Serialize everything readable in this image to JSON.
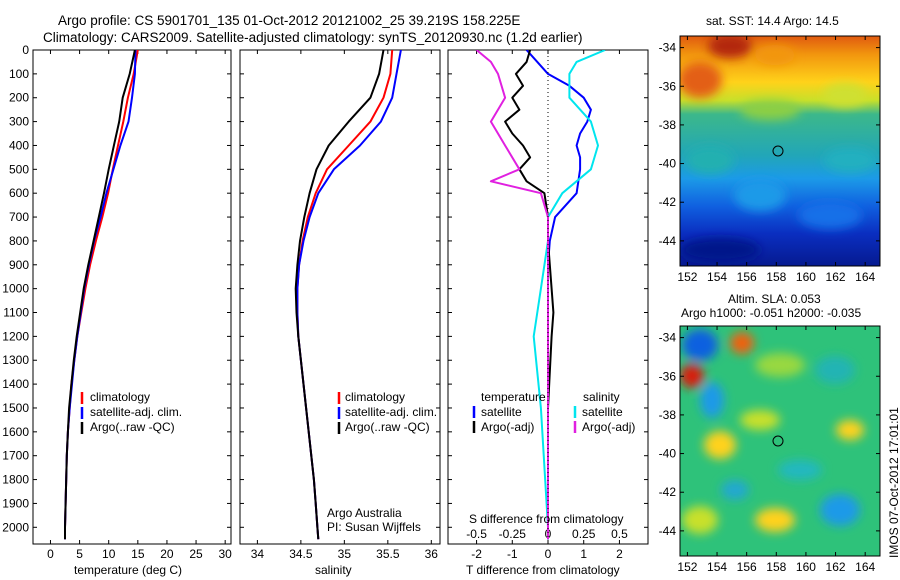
{
  "title": {
    "line1": "Argo profile: CS 5901701_135 01-Oct-2012 20121002_25 39.219S 158.225E",
    "line2": "Climatology: CARS2009. Satellite-adjusted climatology: synTS_20120930.nc (1.2d earlier)"
  },
  "colors": {
    "climatology": "#ff0000",
    "satellite": "#0000ff",
    "argo": "#000000",
    "salinity_satellite": "#00e5ee",
    "salinity_argo": "#e020e0"
  },
  "depth_ticks": [
    "0",
    "100",
    "200",
    "300",
    "400",
    "500",
    "600",
    "700",
    "800",
    "900",
    "1000",
    "1100",
    "1200",
    "1300",
    "1400",
    "1500",
    "1600",
    "1700",
    "1800",
    "1900",
    "2000"
  ],
  "chart_data": [
    {
      "type": "line",
      "panel": "temperature",
      "xlabel": "temperature (deg C)",
      "xticks": [
        "0",
        "5",
        "10",
        "15",
        "20",
        "25",
        "30"
      ],
      "xlim": [
        -3,
        31
      ],
      "ylim": [
        2070,
        0
      ],
      "legend": [
        "climatology",
        "satellite-adj. clim.",
        "Argo(..raw -QC)"
      ],
      "series": [
        {
          "name": "climatology",
          "y": [
            0,
            100,
            200,
            300,
            400,
            500,
            600,
            700,
            800,
            900,
            1000,
            1100,
            1200,
            1300,
            1400,
            1500,
            1600,
            1700,
            1800,
            1900,
            2000,
            2050
          ],
          "values": [
            15.0,
            14.3,
            13.3,
            12.5,
            11.6,
            10.7,
            9.9,
            8.9,
            7.8,
            6.8,
            6.0,
            5.3,
            4.6,
            4.1,
            3.6,
            3.3,
            3.0,
            2.8,
            2.7,
            2.6,
            2.5,
            2.5
          ]
        },
        {
          "name": "satellite-adj. clim.",
          "y": [
            0,
            100,
            200,
            300,
            400,
            500,
            600,
            700,
            800,
            900,
            1000,
            1100,
            1200,
            1300,
            1400,
            1500,
            1600,
            1700,
            1800,
            1900,
            2000,
            2050
          ],
          "values": [
            14.6,
            14.5,
            14.0,
            13.4,
            12.0,
            10.8,
            9.6,
            8.6,
            7.5,
            6.6,
            5.8,
            5.2,
            4.6,
            4.1,
            3.7,
            3.3,
            3.0,
            2.8,
            2.7,
            2.6,
            2.5,
            2.5
          ]
        },
        {
          "name": "Argo(..raw -QC)",
          "y": [
            0,
            100,
            200,
            300,
            400,
            500,
            600,
            700,
            800,
            900,
            1000,
            1100,
            1200,
            1300,
            1400,
            1500,
            1600,
            1700,
            1800,
            1900,
            2000,
            2050
          ],
          "values": [
            14.5,
            13.6,
            12.4,
            11.8,
            10.9,
            10.0,
            9.2,
            8.3,
            7.4,
            6.5,
            5.7,
            5.1,
            4.5,
            4.0,
            3.6,
            3.2,
            3.0,
            2.8,
            2.7,
            2.6,
            2.5,
            2.5
          ]
        }
      ]
    },
    {
      "type": "line",
      "panel": "salinity",
      "xlabel": "salinity",
      "xticks": [
        "34",
        "34.5",
        "35",
        "35.5",
        "36"
      ],
      "xlim": [
        33.8,
        36.1
      ],
      "ylim": [
        2070,
        0
      ],
      "legend": [
        "climatology",
        "satellite-adj. clim.",
        "Argo(..raw -QC)"
      ],
      "annotation": [
        "Argo Australia",
        "PI: Susan Wijffels"
      ],
      "series": [
        {
          "name": "climatology",
          "y": [
            0,
            100,
            200,
            300,
            400,
            500,
            600,
            700,
            800,
            900,
            1000,
            1100,
            1200,
            1300,
            1400,
            1500,
            1600,
            1700,
            1800,
            1900,
            2000,
            2050
          ],
          "values": [
            35.55,
            35.53,
            35.45,
            35.3,
            35.05,
            34.8,
            34.67,
            34.58,
            34.52,
            34.48,
            34.46,
            34.46,
            34.47,
            34.5,
            34.53,
            34.56,
            34.59,
            34.62,
            34.65,
            34.67,
            34.69,
            34.7
          ]
        },
        {
          "name": "satellite-adj. clim.",
          "y": [
            0,
            100,
            200,
            300,
            400,
            500,
            600,
            700,
            800,
            900,
            1000,
            1100,
            1200,
            1300,
            1400,
            1500,
            1600,
            1700,
            1800,
            1900,
            2000,
            2050
          ],
          "values": [
            35.65,
            35.6,
            35.55,
            35.42,
            35.18,
            34.88,
            34.7,
            34.6,
            34.53,
            34.48,
            34.46,
            34.46,
            34.47,
            34.5,
            34.53,
            34.56,
            34.59,
            34.62,
            34.65,
            34.67,
            34.69,
            34.7
          ]
        },
        {
          "name": "Argo(..raw -QC)",
          "y": [
            0,
            100,
            200,
            300,
            400,
            500,
            600,
            700,
            800,
            900,
            1000,
            1100,
            1200,
            1300,
            1400,
            1500,
            1600,
            1700,
            1800,
            1900,
            2000,
            2050
          ],
          "values": [
            35.45,
            35.4,
            35.3,
            35.05,
            34.82,
            34.68,
            34.6,
            34.54,
            34.49,
            34.46,
            34.44,
            34.45,
            34.47,
            34.5,
            34.53,
            34.56,
            34.59,
            34.62,
            34.65,
            34.67,
            34.69,
            34.7
          ]
        }
      ]
    },
    {
      "type": "line",
      "panel": "difference",
      "xlabel_top": "S difference from climatology",
      "xticks_top": [
        "-0.5",
        "-0.25",
        "0",
        "0.25",
        "0.5"
      ],
      "xlabel": "T difference from climatology",
      "xticks": [
        "-2",
        "-1",
        "0",
        "1",
        "2"
      ],
      "xlim": [
        -2.8,
        2.8
      ],
      "ylim": [
        2070,
        0
      ],
      "legend_temperature_title": "temperature",
      "legend_salinity_title": "salinity",
      "legend_temperature": [
        "satellite",
        "Argo(-adj)"
      ],
      "legend_salinity": [
        "satellite",
        "Argo(-adj)"
      ],
      "series": [
        {
          "name": "satellite",
          "y": [
            0,
            50,
            100,
            150,
            200,
            250,
            300,
            350,
            400,
            450,
            500,
            600,
            700,
            800,
            900,
            1000,
            1200,
            1500,
            2000,
            2050
          ],
          "values": [
            -0.6,
            -0.3,
            0.0,
            0.6,
            1.0,
            1.2,
            1.1,
            0.9,
            0.8,
            0.9,
            0.9,
            0.8,
            0.2,
            0.05,
            0.0,
            0.0,
            0.0,
            0.0,
            0.0,
            0.0
          ]
        },
        {
          "name": "Argo(-adj)",
          "y": [
            0,
            50,
            100,
            150,
            200,
            250,
            300,
            350,
            400,
            450,
            500,
            550,
            600,
            700,
            800,
            900,
            1000,
            1100,
            1200,
            1500,
            2000,
            2050
          ],
          "values": [
            -0.5,
            -0.6,
            -0.9,
            -0.7,
            -1.0,
            -0.8,
            -1.2,
            -1.0,
            -0.7,
            -0.5,
            -0.8,
            -0.6,
            -0.1,
            0.0,
            0.0,
            0.05,
            0.1,
            0.15,
            0.1,
            0.0,
            0.0,
            0.0
          ]
        },
        {
          "name": "satellite",
          "y": [
            0,
            50,
            100,
            200,
            300,
            400,
            500,
            600,
            700,
            800,
            1000,
            1200,
            1500,
            2000,
            2050
          ],
          "values": [
            0.4,
            0.2,
            0.15,
            0.15,
            0.3,
            0.35,
            0.3,
            0.1,
            0.0,
            0.0,
            -0.05,
            -0.1,
            -0.05,
            0.0,
            0.0
          ]
        },
        {
          "name": "Argo(-adj)",
          "y": [
            0,
            50,
            100,
            200,
            300,
            400,
            500,
            550,
            600,
            700,
            1000,
            1500,
            2000,
            2050
          ],
          "values": [
            -0.5,
            -0.4,
            -0.35,
            -0.3,
            -0.4,
            -0.3,
            -0.2,
            -0.4,
            -0.05,
            0.0,
            0.0,
            0.0,
            0.0,
            0.0
          ]
        }
      ]
    },
    {
      "type": "heatmap",
      "panel": "sst_map",
      "title": "sat. SST: 14.4  Argo: 14.5",
      "xticks": [
        "152",
        "154",
        "156",
        "158",
        "160",
        "162",
        "164"
      ],
      "yticks": [
        "-34",
        "-36",
        "-38",
        "-40",
        "-42",
        "-44"
      ],
      "xlim": [
        151.5,
        165
      ],
      "ylim": [
        -45.3,
        -33.4
      ],
      "argo_position": {
        "lon": 158.2,
        "lat": -39.2
      }
    },
    {
      "type": "heatmap",
      "panel": "sla_map",
      "title_line1": "Altim. SLA: 0.053",
      "title_line2": "Argo h1000: -0.051 h2000: -0.035",
      "xticks": [
        "152",
        "154",
        "156",
        "158",
        "160",
        "162",
        "164"
      ],
      "yticks": [
        "-34",
        "-36",
        "-38",
        "-40",
        "-42",
        "-44"
      ],
      "xlim": [
        151.5,
        165
      ],
      "ylim": [
        -45.3,
        -33.4
      ],
      "argo_position": {
        "lon": 158.2,
        "lat": -39.2
      },
      "footer": "IMOS 07-Oct-2012 17:01:01"
    }
  ]
}
